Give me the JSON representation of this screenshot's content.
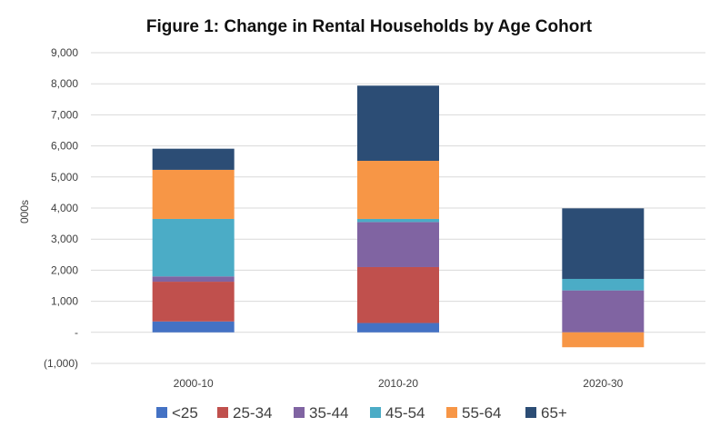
{
  "chart_data": {
    "type": "bar",
    "stacked": true,
    "title": "Figure 1: Change in Rental Households by Age Cohort",
    "xlabel": "",
    "ylabel": "000s",
    "ylim": [
      -1000,
      9000
    ],
    "yticks": [
      {
        "value": 9000,
        "label": "9,000"
      },
      {
        "value": 8000,
        "label": "8,000"
      },
      {
        "value": 7000,
        "label": "7,000"
      },
      {
        "value": 6000,
        "label": "6,000"
      },
      {
        "value": 5000,
        "label": "5,000"
      },
      {
        "value": 4000,
        "label": "4,000"
      },
      {
        "value": 3000,
        "label": "3,000"
      },
      {
        "value": 2000,
        "label": "2,000"
      },
      {
        "value": 1000,
        "label": "1,000"
      },
      {
        "value": 0,
        "label": "-"
      },
      {
        "value": -1000,
        "label": "(1,000)"
      }
    ],
    "grid": true,
    "legend_position": "bottom",
    "categories": [
      "2000-10",
      "2010-20",
      "2020-30"
    ],
    "series": [
      {
        "name": "<25",
        "color": "#4472c4",
        "values": [
          350,
          300,
          0
        ]
      },
      {
        "name": "25-34",
        "color": "#c0504d",
        "values": [
          1280,
          1800,
          0
        ]
      },
      {
        "name": "35-44",
        "color": "#8064a2",
        "values": [
          170,
          1450,
          1350
        ]
      },
      {
        "name": "45-54",
        "color": "#4bacc6",
        "values": [
          1850,
          100,
          370
        ]
      },
      {
        "name": "55-64",
        "color": "#f79646",
        "values": [
          1580,
          1870,
          -480
        ]
      },
      {
        "name": "65+",
        "color": "#2c4d75",
        "values": [
          680,
          2420,
          2270
        ]
      }
    ]
  }
}
